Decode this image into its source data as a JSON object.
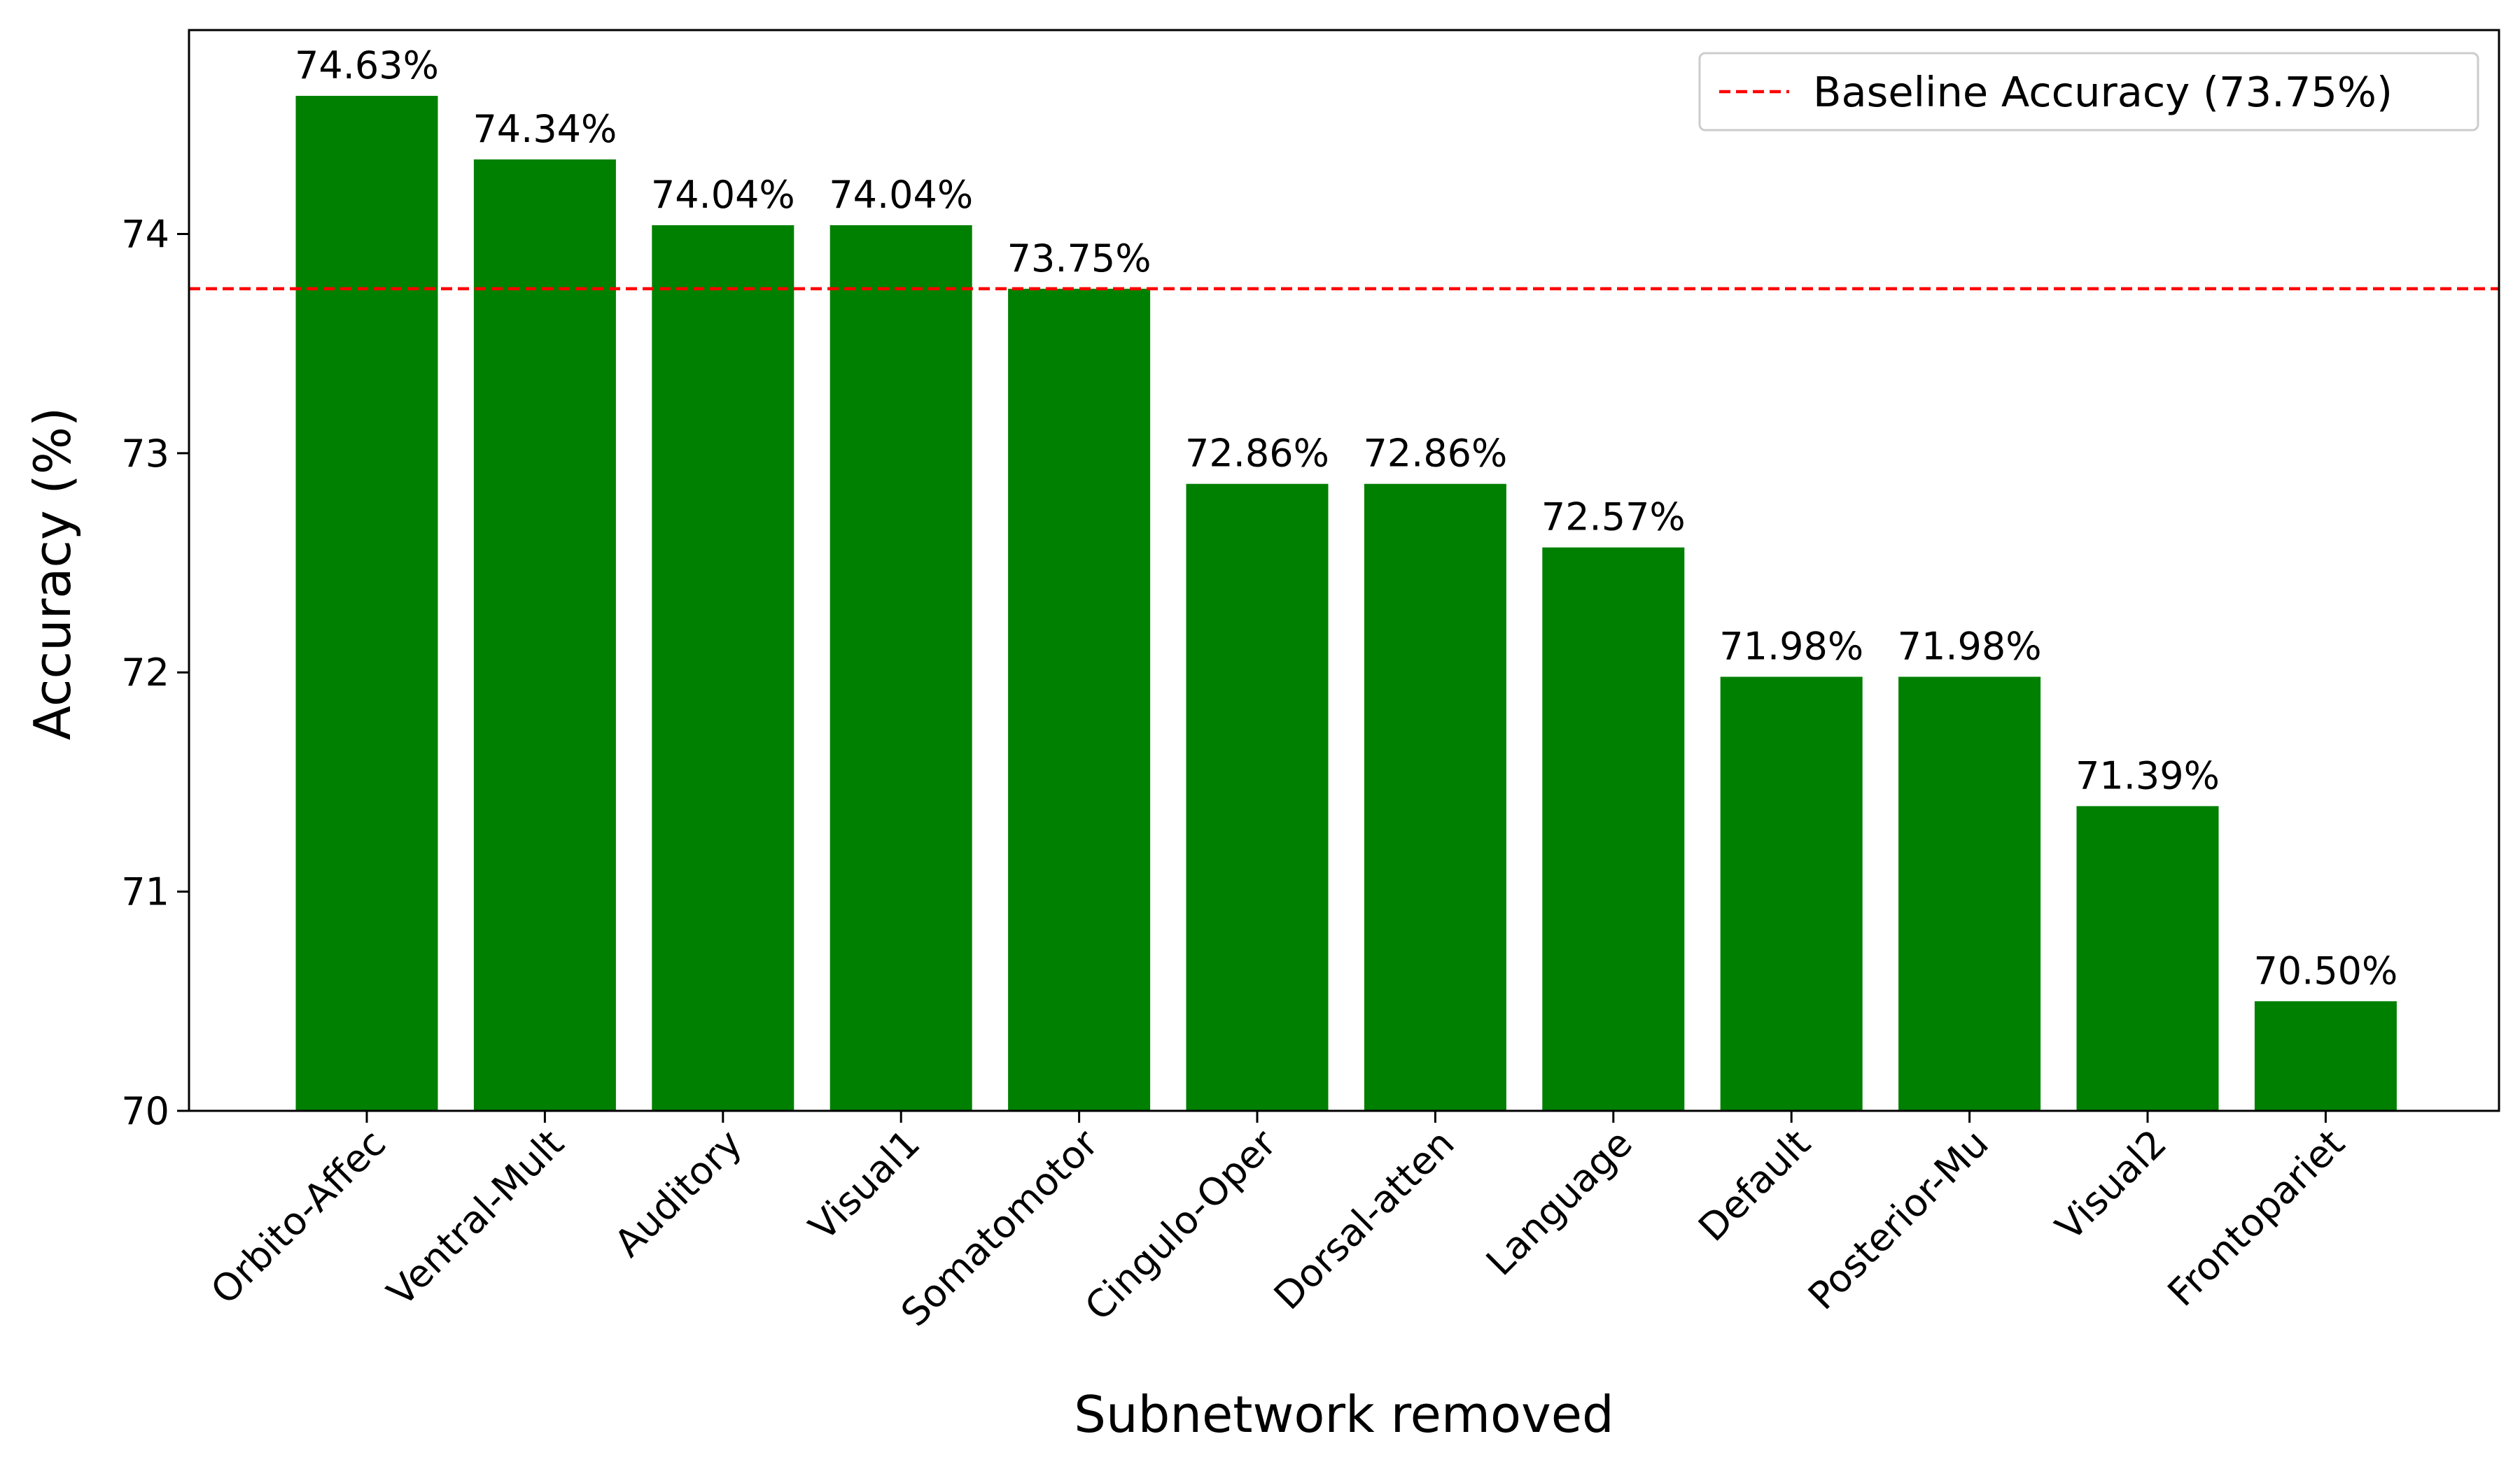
{
  "chart_data": {
    "type": "bar",
    "categories": [
      "Orbito-Affec",
      "Ventral-Mult",
      "Auditory",
      "Visual1",
      "Somatomotor",
      "Cingulo-Oper",
      "Dorsal-atten",
      "Language",
      "Default",
      "Posterior-Mu",
      "Visual2",
      "Frontopariet"
    ],
    "values": [
      74.63,
      74.34,
      74.04,
      74.04,
      73.75,
      72.86,
      72.86,
      72.57,
      71.98,
      71.98,
      71.39,
      70.5
    ],
    "value_labels": [
      "74.63%",
      "74.34%",
      "74.04%",
      "74.04%",
      "73.75%",
      "72.86%",
      "72.86%",
      "72.57%",
      "71.98%",
      "71.98%",
      "71.39%",
      "70.50%"
    ],
    "xlabel": "Subnetwork removed",
    "ylabel": "Accuracy (%)",
    "ylim": [
      70,
      74.93
    ],
    "yticks": [
      70,
      71,
      72,
      73,
      74
    ],
    "grid": false,
    "bar_color": "#008000",
    "baseline": {
      "value": 73.75,
      "label": "Baseline Accuracy (73.75%)",
      "color": "#ff0000",
      "style": "dashed"
    },
    "legend_position": "top-right"
  }
}
